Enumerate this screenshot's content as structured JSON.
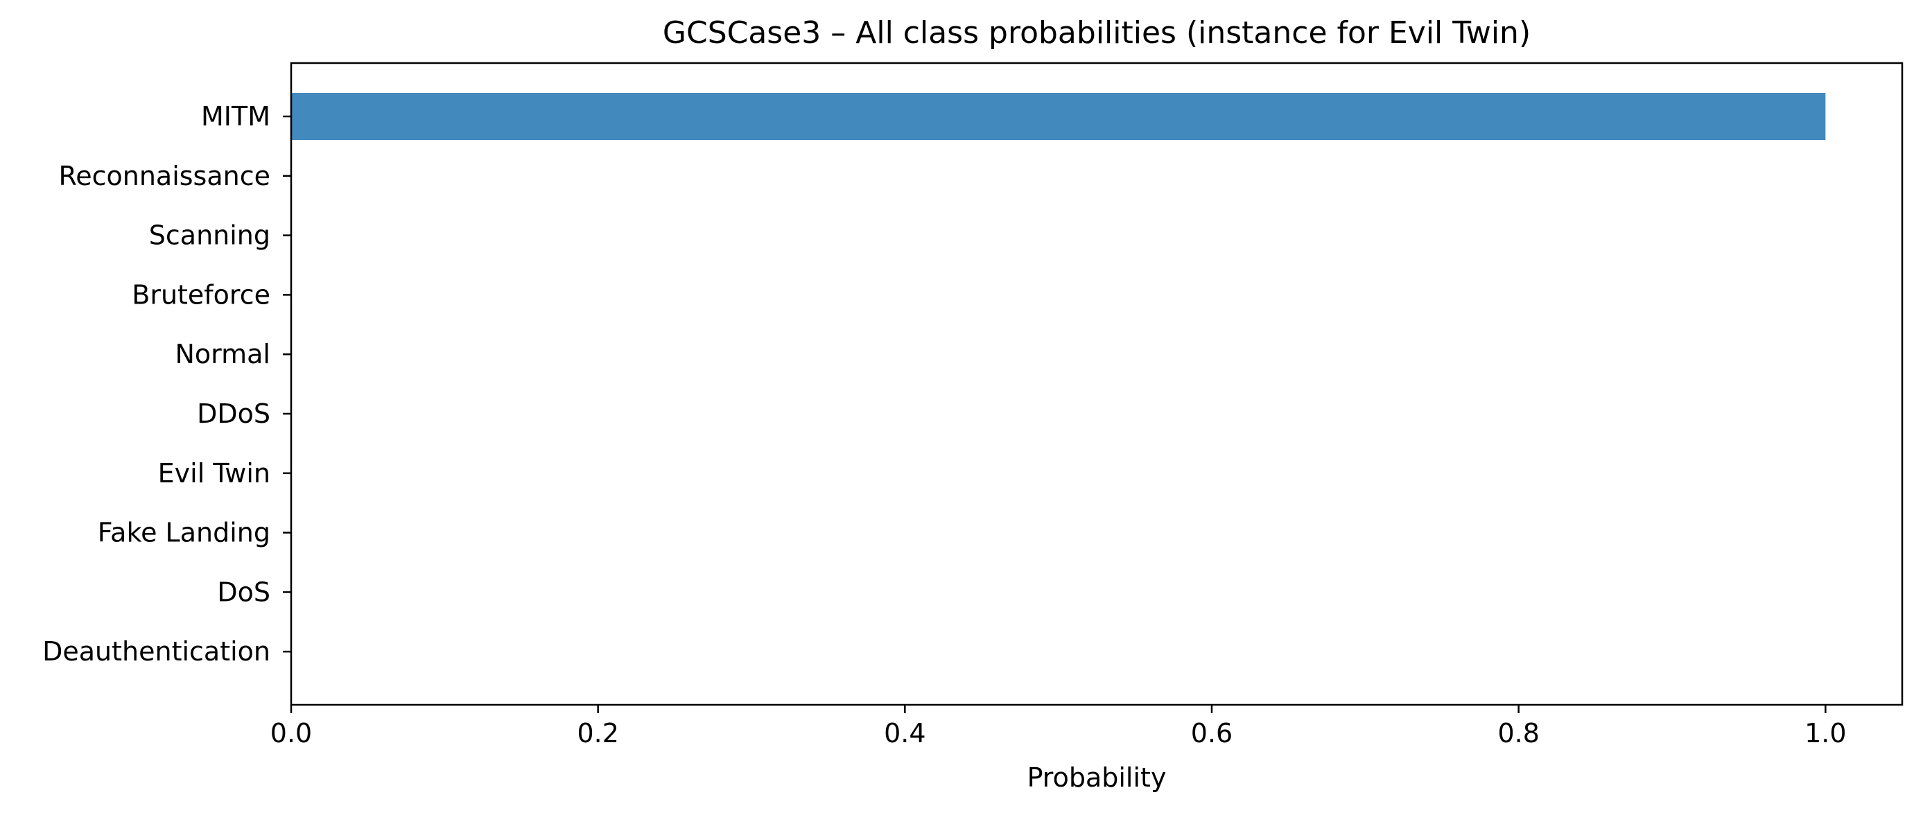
{
  "chart_data": {
    "type": "bar",
    "orientation": "horizontal",
    "title": "GCSCase3 – All class probabilities (instance for Evil Twin)",
    "xlabel": "Probability",
    "ylabel": "",
    "categories": [
      "MITM",
      "Reconnaissance",
      "Scanning",
      "Bruteforce",
      "Normal",
      "DDoS",
      "Evil Twin",
      "Fake Landing",
      "DoS",
      "Deauthentication"
    ],
    "values": [
      1.0,
      0.0,
      0.0,
      0.0,
      0.0,
      0.0,
      0.0,
      0.0,
      0.0,
      0.0
    ],
    "xlim": [
      0,
      1.05
    ],
    "xticks": [
      0.0,
      0.2,
      0.4,
      0.6,
      0.8,
      1.0
    ],
    "xtick_labels": [
      "0.0",
      "0.2",
      "0.4",
      "0.6",
      "0.8",
      "1.0"
    ],
    "bar_color": "#4289bd",
    "grid": false,
    "legend": "none"
  }
}
